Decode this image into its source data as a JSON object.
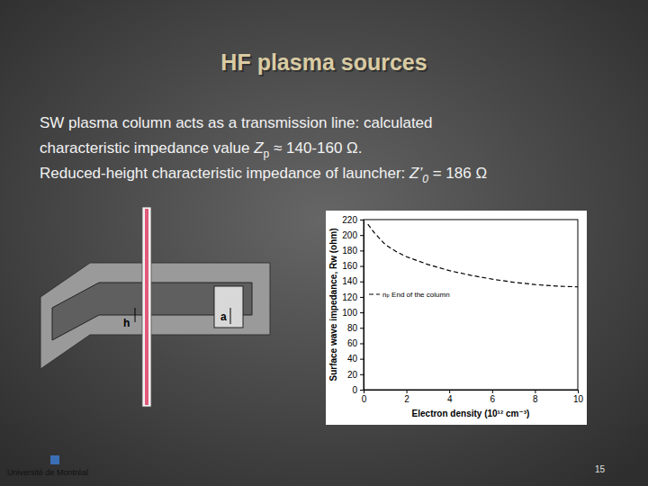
{
  "slide": {
    "title": "HF plasma sources",
    "lines": [
      [
        {
          "text": "SW plasma column acts as a transmission line: calculated"
        }
      ],
      [
        {
          "text": "characteristic impedance value "
        },
        {
          "text": "Z",
          "style": "italic"
        },
        {
          "text": "p",
          "style": "sub"
        },
        {
          "text": " ≈ 140-160 Ω."
        }
      ],
      [
        {
          "text": "Reduced-height characteristic impedance of launcher:  "
        },
        {
          "text": "Z’",
          "style": "italic"
        },
        {
          "text": "0",
          "style": "italic-sub"
        },
        {
          "text": " = 186 Ω"
        }
      ]
    ],
    "page_number": "15",
    "logo_text": "Université de Montréal"
  },
  "diagram": {
    "labels": [
      "h",
      "a"
    ]
  },
  "chart_data": {
    "type": "line",
    "x": [
      0.2,
      0.5,
      1,
      1.5,
      2,
      3,
      4,
      5,
      6,
      7,
      8,
      9,
      10
    ],
    "series": [
      {
        "name": "nₚ End of the column",
        "color": "#000000",
        "line_style": "dashed",
        "values": [
          214,
          203,
          188,
          179,
          172,
          162,
          154,
          148,
          143,
          139,
          136,
          134,
          133
        ]
      }
    ],
    "xlim": [
      0,
      10
    ],
    "ylim": [
      0,
      220
    ],
    "xticks": [
      0,
      2,
      4,
      6,
      8,
      10
    ],
    "yticks": [
      0,
      20,
      40,
      60,
      80,
      100,
      120,
      140,
      160,
      180,
      200,
      220
    ],
    "x_label": "Electron density (10¹² cm⁻³)",
    "y_label": "Surface wave impedance, Rw (ohm)",
    "legend": "left"
  }
}
